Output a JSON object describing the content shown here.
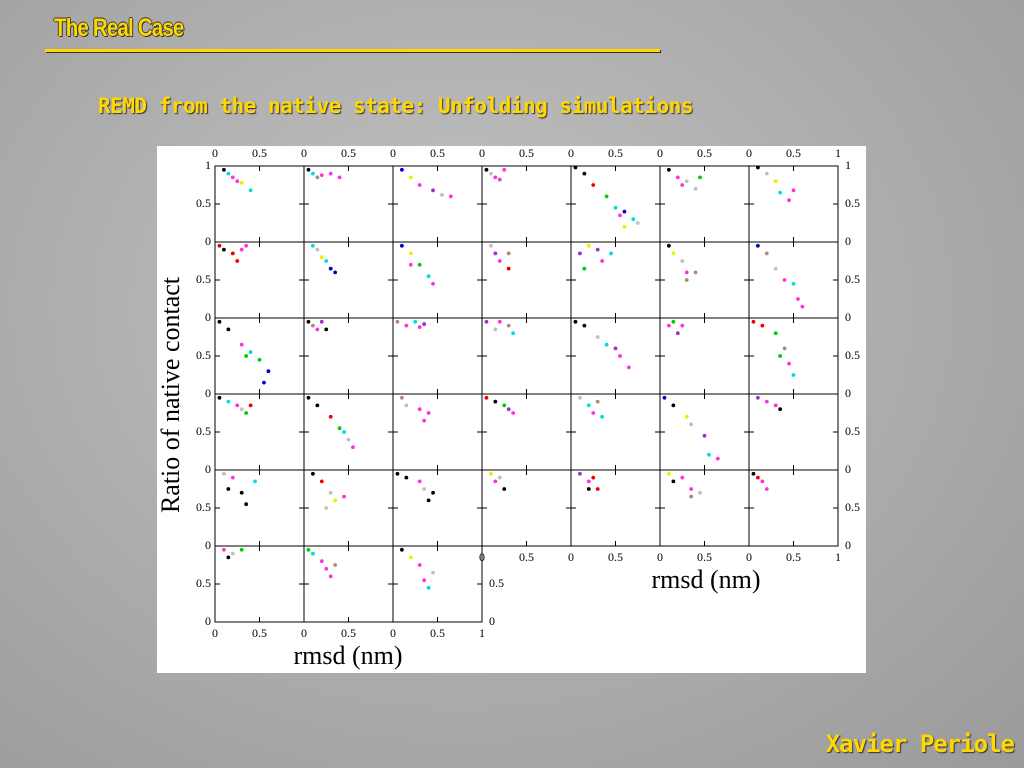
{
  "header": {
    "title": "The Real Case",
    "subtitle": "REMD from the native state: Unfolding simulations"
  },
  "footer": {
    "author": "Xavier Periole"
  },
  "chart_data": {
    "type": "scatter-grid",
    "y_label": "Ratio of native contact",
    "x_label": "rmsd (nm)",
    "xlim": [
      0,
      1
    ],
    "ylim": [
      0,
      1
    ],
    "xticks": [
      0,
      0.5,
      1
    ],
    "yticks": [
      0,
      0.5,
      1
    ],
    "columns": 7,
    "panels": [
      {
        "x": [
          0.1,
          0.15,
          0.2,
          0.25,
          0.3,
          0.4
        ],
        "y": [
          0.95,
          0.9,
          0.85,
          0.8,
          0.78,
          0.68
        ],
        "colors": [
          "#000000",
          "#00dddd",
          "#ff33dd",
          "#ff33dd",
          "#eeee00",
          "#00dddd"
        ]
      },
      {
        "x": [
          0.05,
          0.1,
          0.2,
          0.3,
          0.4,
          0.15
        ],
        "y": [
          0.95,
          0.9,
          0.88,
          0.9,
          0.85,
          0.85
        ],
        "colors": [
          "#000000",
          "#00dddd",
          "#ff33dd",
          "#ff33dd",
          "#ff33dd",
          "#b08878"
        ]
      },
      {
        "x": [
          0.1,
          0.2,
          0.3,
          0.45,
          0.55,
          0.65
        ],
        "y": [
          0.95,
          0.85,
          0.75,
          0.68,
          0.62,
          0.6
        ],
        "colors": [
          "#0000cc",
          "#eeee00",
          "#ff33dd",
          "#9933cc",
          "#c0c0c0",
          "#ff33dd"
        ]
      },
      {
        "x": [
          0.05,
          0.1,
          0.15,
          0.2,
          0.25
        ],
        "y": [
          0.95,
          0.9,
          0.85,
          0.82,
          0.95
        ],
        "colors": [
          "#000000",
          "#c0c0c0",
          "#ff33dd",
          "#ff33dd",
          "#ff33dd"
        ]
      },
      {
        "x": [
          0.05,
          0.15,
          0.25,
          0.4,
          0.5,
          0.6,
          0.7,
          0.6,
          0.75,
          0.55
        ],
        "y": [
          0.98,
          0.9,
          0.75,
          0.6,
          0.45,
          0.4,
          0.3,
          0.2,
          0.25,
          0.35
        ],
        "colors": [
          "#000000",
          "#000000",
          "#ee0000",
          "#00cc00",
          "#00dddd",
          "#0000cc",
          "#00dddd",
          "#eeee00",
          "#c0c0c0",
          "#ff33dd"
        ]
      },
      {
        "x": [
          0.1,
          0.2,
          0.3,
          0.4,
          0.45,
          0.25
        ],
        "y": [
          0.95,
          0.85,
          0.8,
          0.7,
          0.85,
          0.75
        ],
        "colors": [
          "#000000",
          "#ff33dd",
          "#c0c0c0",
          "#c0c0c0",
          "#00cc00",
          "#ff33dd"
        ]
      },
      {
        "x": [
          0.1,
          0.2,
          0.3,
          0.35,
          0.45,
          0.5
        ],
        "y": [
          0.98,
          0.9,
          0.8,
          0.65,
          0.55,
          0.68
        ],
        "colors": [
          "#000000",
          "#c0c0c0",
          "#eeee00",
          "#00dddd",
          "#ff33dd",
          "#ff33dd"
        ]
      },
      {
        "x": [
          0.05,
          0.1,
          0.2,
          0.3,
          0.35,
          0.25
        ],
        "y": [
          0.95,
          0.9,
          0.85,
          0.9,
          0.95,
          0.75
        ],
        "colors": [
          "#ee0000",
          "#000000",
          "#ee0000",
          "#ff33dd",
          "#ff33dd",
          "#ee0000"
        ]
      },
      {
        "x": [
          0.1,
          0.15,
          0.2,
          0.25,
          0.3,
          0.35
        ],
        "y": [
          0.95,
          0.9,
          0.8,
          0.75,
          0.65,
          0.6
        ],
        "colors": [
          "#00dddd",
          "#c0c0c0",
          "#eeee00",
          "#00dddd",
          "#0000cc",
          "#0000cc"
        ]
      },
      {
        "x": [
          0.1,
          0.2,
          0.3,
          0.4,
          0.45,
          0.2
        ],
        "y": [
          0.95,
          0.85,
          0.7,
          0.55,
          0.45,
          0.7
        ],
        "colors": [
          "#0000cc",
          "#eeee00",
          "#00cc00",
          "#00dddd",
          "#ff33dd",
          "#ff33dd"
        ]
      },
      {
        "x": [
          0.1,
          0.15,
          0.2,
          0.3,
          0.3
        ],
        "y": [
          0.95,
          0.85,
          0.75,
          0.65,
          0.85
        ],
        "colors": [
          "#c0c0c0",
          "#9933cc",
          "#ff33dd",
          "#ee0000",
          "#b08878"
        ]
      },
      {
        "x": [
          0.1,
          0.2,
          0.3,
          0.35,
          0.45,
          0.15
        ],
        "y": [
          0.85,
          0.95,
          0.9,
          0.75,
          0.85,
          0.65
        ],
        "colors": [
          "#9933cc",
          "#eeee00",
          "#9933cc",
          "#ff33dd",
          "#00dddd",
          "#00cc00"
        ]
      },
      {
        "x": [
          0.1,
          0.15,
          0.25,
          0.3,
          0.4,
          0.3
        ],
        "y": [
          0.95,
          0.85,
          0.75,
          0.6,
          0.6,
          0.5
        ],
        "colors": [
          "#000000",
          "#eeee00",
          "#c0c0c0",
          "#ff33dd",
          "#b08878",
          "#b08878"
        ]
      },
      {
        "x": [
          0.1,
          0.2,
          0.3,
          0.4,
          0.5,
          0.55,
          0.6
        ],
        "y": [
          0.95,
          0.85,
          0.65,
          0.5,
          0.45,
          0.25,
          0.15
        ],
        "colors": [
          "#0000cc",
          "#b08878",
          "#c0c0c0",
          "#ff33dd",
          "#00dddd",
          "#ff33dd",
          "#ff33dd"
        ]
      },
      {
        "x": [
          0.05,
          0.15,
          0.3,
          0.4,
          0.5,
          0.6,
          0.55,
          0.35
        ],
        "y": [
          0.95,
          0.85,
          0.65,
          0.55,
          0.45,
          0.3,
          0.15,
          0.5
        ],
        "colors": [
          "#000000",
          "#000000",
          "#ff33dd",
          "#00dddd",
          "#00cc00",
          "#0000cc",
          "#0000cc",
          "#00cc00"
        ]
      },
      {
        "x": [
          0.05,
          0.1,
          0.15,
          0.2,
          0.25
        ],
        "y": [
          0.95,
          0.9,
          0.85,
          0.95,
          0.85
        ],
        "colors": [
          "#000000",
          "#b08878",
          "#ff33dd",
          "#9933cc",
          "#000000"
        ]
      },
      {
        "x": [
          0.05,
          0.15,
          0.25,
          0.35,
          0.3
        ],
        "y": [
          0.95,
          0.9,
          0.95,
          0.92,
          0.88
        ],
        "colors": [
          "#b08878",
          "#ff33dd",
          "#00dddd",
          "#9933cc",
          "#ff33dd"
        ]
      },
      {
        "x": [
          0.05,
          0.15,
          0.2,
          0.35,
          0.3
        ],
        "y": [
          0.95,
          0.85,
          0.95,
          0.8,
          0.9
        ],
        "colors": [
          "#9933cc",
          "#c0c0c0",
          "#ff33dd",
          "#00dddd",
          "#b08878"
        ]
      },
      {
        "x": [
          0.05,
          0.15,
          0.3,
          0.4,
          0.5,
          0.55,
          0.65
        ],
        "y": [
          0.95,
          0.9,
          0.75,
          0.65,
          0.6,
          0.5,
          0.35
        ],
        "colors": [
          "#000000",
          "#000000",
          "#c0c0c0",
          "#00dddd",
          "#9933cc",
          "#ff33dd",
          "#ff33dd"
        ]
      },
      {
        "x": [
          0.1,
          0.15,
          0.25,
          0.2
        ],
        "y": [
          0.9,
          0.95,
          0.9,
          0.8
        ],
        "colors": [
          "#ff33dd",
          "#00cc00",
          "#ff33dd",
          "#9933cc"
        ]
      },
      {
        "x": [
          0.05,
          0.15,
          0.3,
          0.4,
          0.45,
          0.5,
          0.35
        ],
        "y": [
          0.95,
          0.9,
          0.8,
          0.6,
          0.4,
          0.25,
          0.5
        ],
        "colors": [
          "#ee0000",
          "#ee0000",
          "#00cc00",
          "#b08878",
          "#ff33dd",
          "#00dddd",
          "#00cc00"
        ]
      },
      {
        "x": [
          0.05,
          0.15,
          0.25,
          0.3,
          0.4,
          0.35
        ],
        "y": [
          0.95,
          0.9,
          0.85,
          0.8,
          0.85,
          0.75
        ],
        "colors": [
          "#000000",
          "#00dddd",
          "#ff33dd",
          "#c0c0c0",
          "#ee0000",
          "#00cc00"
        ]
      },
      {
        "x": [
          0.05,
          0.15,
          0.3,
          0.4,
          0.5,
          0.55,
          0.45
        ],
        "y": [
          0.95,
          0.85,
          0.7,
          0.55,
          0.4,
          0.3,
          0.5
        ],
        "colors": [
          "#000000",
          "#000000",
          "#ee0000",
          "#00cc00",
          "#c0c0c0",
          "#ff33dd",
          "#00dddd"
        ]
      },
      {
        "x": [
          0.1,
          0.15,
          0.3,
          0.4,
          0.35
        ],
        "y": [
          0.95,
          0.85,
          0.8,
          0.75,
          0.65
        ],
        "colors": [
          "#b08878",
          "#c0c0c0",
          "#ff33dd",
          "#ff33dd",
          "#ff33dd"
        ]
      },
      {
        "x": [
          0.05,
          0.15,
          0.25,
          0.3,
          0.35
        ],
        "y": [
          0.95,
          0.9,
          0.85,
          0.8,
          0.75
        ],
        "colors": [
          "#ee0000",
          "#000000",
          "#00cc00",
          "#9933cc",
          "#ff33dd"
        ]
      },
      {
        "x": [
          0.1,
          0.2,
          0.25,
          0.3,
          0.35
        ],
        "y": [
          0.95,
          0.85,
          0.75,
          0.9,
          0.7
        ],
        "colors": [
          "#c0c0c0",
          "#00dddd",
          "#ff33dd",
          "#b08878",
          "#00dddd"
        ]
      },
      {
        "x": [
          0.05,
          0.15,
          0.3,
          0.35,
          0.5,
          0.55,
          0.65
        ],
        "y": [
          0.95,
          0.85,
          0.7,
          0.6,
          0.45,
          0.2,
          0.15
        ],
        "colors": [
          "#0000cc",
          "#000000",
          "#eeee00",
          "#c0c0c0",
          "#9933cc",
          "#00dddd",
          "#ff33dd"
        ]
      },
      {
        "x": [
          0.1,
          0.2,
          0.3,
          0.35
        ],
        "y": [
          0.95,
          0.9,
          0.85,
          0.8
        ],
        "colors": [
          "#9933cc",
          "#ff33dd",
          "#ff33dd",
          "#000000"
        ]
      },
      {
        "x": [
          0.1,
          0.2,
          0.15,
          0.3,
          0.35,
          0.45
        ],
        "y": [
          0.95,
          0.9,
          0.75,
          0.7,
          0.55,
          0.85
        ],
        "colors": [
          "#c0c0c0",
          "#ff33dd",
          "#000000",
          "#000000",
          "#000000",
          "#00dddd"
        ]
      },
      {
        "x": [
          0.1,
          0.2,
          0.3,
          0.35,
          0.45,
          0.25
        ],
        "y": [
          0.95,
          0.85,
          0.7,
          0.6,
          0.65,
          0.5
        ],
        "colors": [
          "#000000",
          "#ee0000",
          "#c0c0c0",
          "#eeee00",
          "#ff33dd",
          "#c0c0c0"
        ]
      },
      {
        "x": [
          0.05,
          0.15,
          0.3,
          0.35,
          0.4,
          0.45
        ],
        "y": [
          0.95,
          0.9,
          0.85,
          0.75,
          0.6,
          0.7
        ],
        "colors": [
          "#000000",
          "#000000",
          "#ff33dd",
          "#c0c0c0",
          "#000000",
          "#000000"
        ]
      },
      {
        "x": [
          0.1,
          0.15,
          0.2,
          0.25
        ],
        "y": [
          0.95,
          0.85,
          0.9,
          0.75
        ],
        "colors": [
          "#eeee00",
          "#ff33dd",
          "#c0c0c0",
          "#000000"
        ]
      },
      {
        "x": [
          0.1,
          0.2,
          0.25,
          0.3,
          0.2
        ],
        "y": [
          0.95,
          0.85,
          0.9,
          0.75,
          0.75
        ],
        "colors": [
          "#9933cc",
          "#ff33dd",
          "#ee0000",
          "#ee0000",
          "#000000"
        ]
      },
      {
        "x": [
          0.1,
          0.15,
          0.25,
          0.35,
          0.35,
          0.45
        ],
        "y": [
          0.95,
          0.85,
          0.9,
          0.75,
          0.65,
          0.7
        ],
        "colors": [
          "#eeee00",
          "#000000",
          "#ff33dd",
          "#ff33dd",
          "#b08878",
          "#c0c0c0"
        ]
      },
      {
        "x": [
          0.05,
          0.1,
          0.15,
          0.2
        ],
        "y": [
          0.95,
          0.9,
          0.85,
          0.75
        ],
        "colors": [
          "#000000",
          "#ee0000",
          "#ff33dd",
          "#ff33dd"
        ]
      },
      {
        "x": [
          0.1,
          0.15,
          0.2,
          0.3
        ],
        "y": [
          0.95,
          0.85,
          0.9,
          0.95
        ],
        "colors": [
          "#ff33dd",
          "#000000",
          "#c0c0c0",
          "#00cc00"
        ]
      },
      {
        "x": [
          0.05,
          0.1,
          0.2,
          0.25,
          0.3,
          0.35
        ],
        "y": [
          0.95,
          0.9,
          0.8,
          0.7,
          0.6,
          0.75
        ],
        "colors": [
          "#00cc00",
          "#00dddd",
          "#ff33dd",
          "#ff33dd",
          "#ff33dd",
          "#b08878"
        ]
      },
      {
        "x": [
          0.1,
          0.2,
          0.3,
          0.35,
          0.4,
          0.45
        ],
        "y": [
          0.95,
          0.85,
          0.75,
          0.55,
          0.45,
          0.65
        ],
        "colors": [
          "#000000",
          "#eeee00",
          "#ff33dd",
          "#ff33dd",
          "#00dddd",
          "#c0c0c0"
        ]
      }
    ]
  }
}
